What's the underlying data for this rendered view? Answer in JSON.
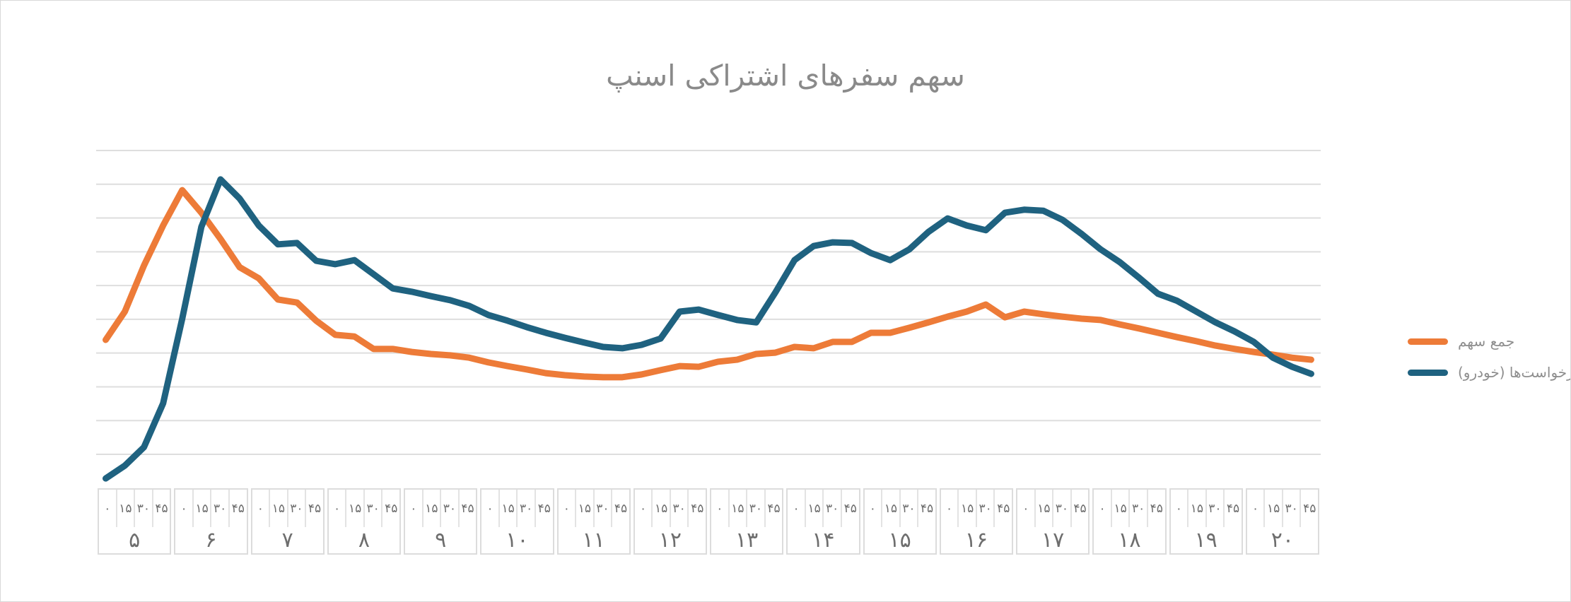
{
  "title": "سهم سفرهای اشتراکی اسنپ",
  "colors": {
    "share_series": "#ed7b38",
    "requests_series": "#1f6280",
    "grid": "#dedede",
    "title_text": "#8a8a8a",
    "axis_text": "#6e6e6e",
    "legend_text": "#8e8e8e",
    "axis_box_border": "#dcdcdc"
  },
  "legend": [
    {
      "label": "جمع سهم",
      "color": "#ed7b38"
    },
    {
      "label": "جمع درخواست‌ها (خودرو)",
      "color": "#1f6280"
    }
  ],
  "x_axis": {
    "minutes": [
      "۰",
      "۱۵",
      "۳۰",
      "۴۵"
    ],
    "minutes_value": [
      0,
      15,
      30,
      45
    ],
    "hours": [
      "۵",
      "۶",
      "۷",
      "۸",
      "۹",
      "۱۰",
      "۱۱",
      "۱۲",
      "۱۳",
      "۱۴",
      "۱۵",
      "۱۶",
      "۱۷",
      "۱۸",
      "۱۹",
      "۲۰"
    ],
    "hours_value": [
      5,
      6,
      7,
      8,
      9,
      10,
      11,
      12,
      13,
      14,
      15,
      16,
      17,
      18,
      19,
      20
    ]
  },
  "chart_data": {
    "type": "line",
    "title": "سهم سفرهای اشتراکی اسنپ",
    "xlabel": "",
    "ylabel": "",
    "grid": true,
    "legend_position": "right-middle",
    "y_axis_labels_visible": false,
    "value_scale": "relative 0-100 (100 = top gridline, 0 = plot bottom; no numeric y labels shown in chart)",
    "ylim": [
      0,
      100
    ],
    "x": [
      "5:00",
      "5:15",
      "5:30",
      "5:45",
      "6:00",
      "6:15",
      "6:30",
      "6:45",
      "7:00",
      "7:15",
      "7:30",
      "7:45",
      "8:00",
      "8:15",
      "8:30",
      "8:45",
      "9:00",
      "9:15",
      "9:30",
      "9:45",
      "10:00",
      "10:15",
      "10:30",
      "10:45",
      "11:00",
      "11:15",
      "11:30",
      "11:45",
      "12:00",
      "12:15",
      "12:30",
      "12:45",
      "13:00",
      "13:15",
      "13:30",
      "13:45",
      "14:00",
      "14:15",
      "14:30",
      "14:45",
      "15:00",
      "15:15",
      "15:30",
      "15:45",
      "16:00",
      "16:15",
      "16:30",
      "16:45",
      "17:00",
      "17:15",
      "17:30",
      "17:45",
      "18:00",
      "18:15",
      "18:30",
      "18:45",
      "19:00",
      "19:15",
      "19:30",
      "19:45",
      "20:00",
      "20:15",
      "20:30",
      "20:45"
    ],
    "series": [
      {
        "name": "جمع سهم",
        "color": "#ed7b38",
        "values": [
          43.7,
          52.1,
          65.8,
          77.7,
          88.2,
          81.5,
          73.7,
          65.3,
          62.0,
          55.7,
          54.8,
          49.4,
          45.2,
          44.7,
          41.0,
          41.0,
          40.1,
          39.5,
          39.1,
          38.4,
          37.0,
          35.9,
          34.9,
          33.8,
          33.2,
          32.8,
          32.6,
          32.6,
          33.4,
          34.7,
          35.9,
          35.7,
          37.2,
          37.8,
          39.5,
          39.9,
          41.6,
          41.2,
          43.1,
          43.1,
          45.8,
          45.8,
          47.3,
          48.9,
          50.6,
          52.1,
          54.2,
          50.4,
          52.1,
          51.3,
          50.6,
          50.0,
          49.6,
          48.3,
          47.1,
          45.8,
          44.5,
          43.3,
          42.0,
          41.0,
          40.1,
          39.3,
          38.4,
          37.8
        ]
      },
      {
        "name": "جمع درخواست‌ها (خودرو)",
        "color": "#1f6280",
        "values": [
          2.5,
          6.3,
          11.8,
          24.8,
          50.0,
          77.3,
          91.4,
          85.7,
          77.7,
          72.1,
          72.5,
          67.2,
          66.2,
          67.4,
          63.2,
          59.0,
          58.0,
          56.7,
          55.5,
          53.8,
          51.1,
          49.4,
          47.5,
          45.8,
          44.3,
          42.9,
          41.6,
          41.2,
          42.2,
          44.1,
          52.1,
          52.7,
          51.1,
          49.6,
          48.9,
          57.8,
          67.4,
          71.6,
          72.7,
          72.5,
          69.5,
          67.4,
          70.6,
          75.8,
          79.8,
          77.7,
          76.3,
          81.5,
          82.4,
          82.1,
          79.4,
          75.2,
          70.6,
          66.8,
          62.2,
          57.4,
          55.3,
          52.1,
          48.9,
          46.2,
          43.1,
          38.4,
          35.7,
          33.6
        ]
      }
    ]
  }
}
